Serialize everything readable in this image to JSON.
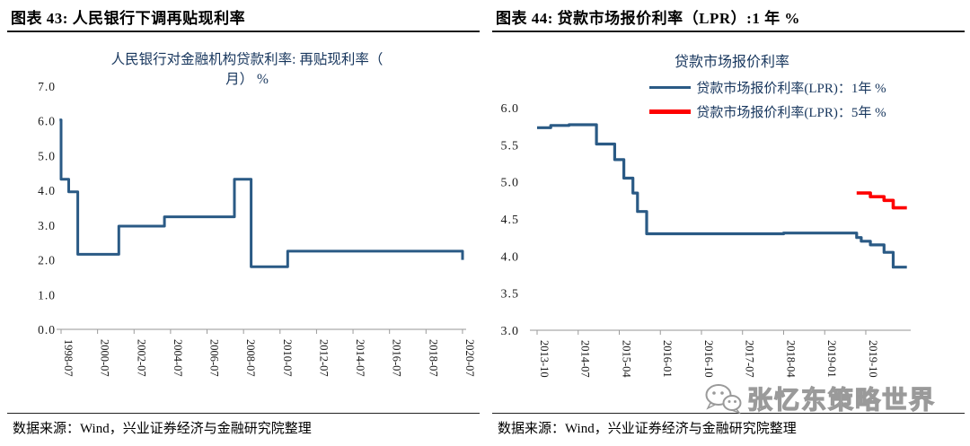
{
  "figures": [
    {
      "header": "图表 43:  人民银行下调再贴现利率",
      "source": "数据来源：Wind，兴业证券经济与金融研究院整理",
      "chart_data": {
        "type": "line",
        "title": "人民银行对金融机构贷款利率: 再贴现利率（月） %",
        "title_lines": [
          "人民银行对金融机构贷款利率: 再贴现利率（",
          "月） %"
        ],
        "ylim": [
          0,
          7
        ],
        "ytick_step": 1,
        "ytick_labels": [
          "7.0",
          "6.0",
          "5.0",
          "4.0",
          "3.0",
          "2.0",
          "1.0",
          "0.0"
        ],
        "x_ticks": [
          "1998-07",
          "2000-07",
          "2002-07",
          "2004-07",
          "2006-07",
          "2008-07",
          "2010-07",
          "2012-07",
          "2014-07",
          "2016-07",
          "2018-07",
          "2020-07"
        ],
        "grid": false,
        "legend_position": "none",
        "series": [
          {
            "name": "人民银行对金融机构贷款利率:再贴现利率（月） %",
            "color": "#2a5a85",
            "width": 3,
            "points": [
              [
                "1998-06",
                6.03
              ],
              [
                "1998-07",
                4.32
              ],
              [
                "1998-12",
                3.96
              ],
              [
                "1999-06",
                2.16
              ],
              [
                "2001-09",
                2.97
              ],
              [
                "2004-03",
                3.24
              ],
              [
                "2008-01",
                4.32
              ],
              [
                "2008-12",
                1.8
              ],
              [
                "2010-12",
                2.25
              ],
              [
                "2020-07",
                2.0
              ]
            ]
          }
        ]
      }
    },
    {
      "header": "图表 44:  贷款市场报价利率（LPR）:1 年 %",
      "source": "数据来源：Wind，兴业证券经济与金融研究院整理",
      "chart_data": {
        "type": "line",
        "title": "贷款市场报价利率",
        "title_lines": [
          "贷款市场报价利率"
        ],
        "ylim": [
          3,
          6
        ],
        "ytick_step": 0.5,
        "ytick_labels": [
          "6.0",
          "5.5",
          "5.0",
          "4.5",
          "4.0",
          "3.5",
          "3.0"
        ],
        "x_ticks": [
          "2013-10",
          "2014-07",
          "2015-04",
          "2016-01",
          "2016-10",
          "2017-07",
          "2018-04",
          "2019-01",
          "2019-10"
        ],
        "grid": false,
        "legend_position": "top",
        "series": [
          {
            "name": "贷款市场报价利率(LPR)：1年 %",
            "color": "#2a5a85",
            "width": 3.2,
            "points": [
              [
                "2013-10",
                5.73
              ],
              [
                "2014-01",
                5.76
              ],
              [
                "2014-05",
                5.77
              ],
              [
                "2014-11",
                5.51
              ],
              [
                "2015-03",
                5.3
              ],
              [
                "2015-05",
                5.05
              ],
              [
                "2015-07",
                4.85
              ],
              [
                "2015-08",
                4.6
              ],
              [
                "2015-10",
                4.3
              ],
              [
                "2018-04",
                4.31
              ],
              [
                "2019-08",
                4.25
              ],
              [
                "2019-09",
                4.2
              ],
              [
                "2019-11",
                4.15
              ],
              [
                "2020-02",
                4.05
              ],
              [
                "2020-04",
                3.85
              ],
              [
                "2020-07",
                3.85
              ]
            ]
          },
          {
            "name": "贷款市场报价利率(LPR)：5年 %",
            "color": "#fe0000",
            "width": 3.6,
            "points": [
              [
                "2019-08",
                4.85
              ],
              [
                "2019-11",
                4.8
              ],
              [
                "2020-02",
                4.75
              ],
              [
                "2020-04",
                4.65
              ],
              [
                "2020-07",
                4.65
              ]
            ]
          }
        ]
      }
    }
  ],
  "watermark": {
    "icon": "wechat-icon",
    "text": "张忆东策略世界"
  },
  "colors": {
    "line_blue": "#2a5a85",
    "line_red": "#fe0000",
    "axis_gray": "#b9b9b9",
    "title_navy": "#17365d"
  }
}
